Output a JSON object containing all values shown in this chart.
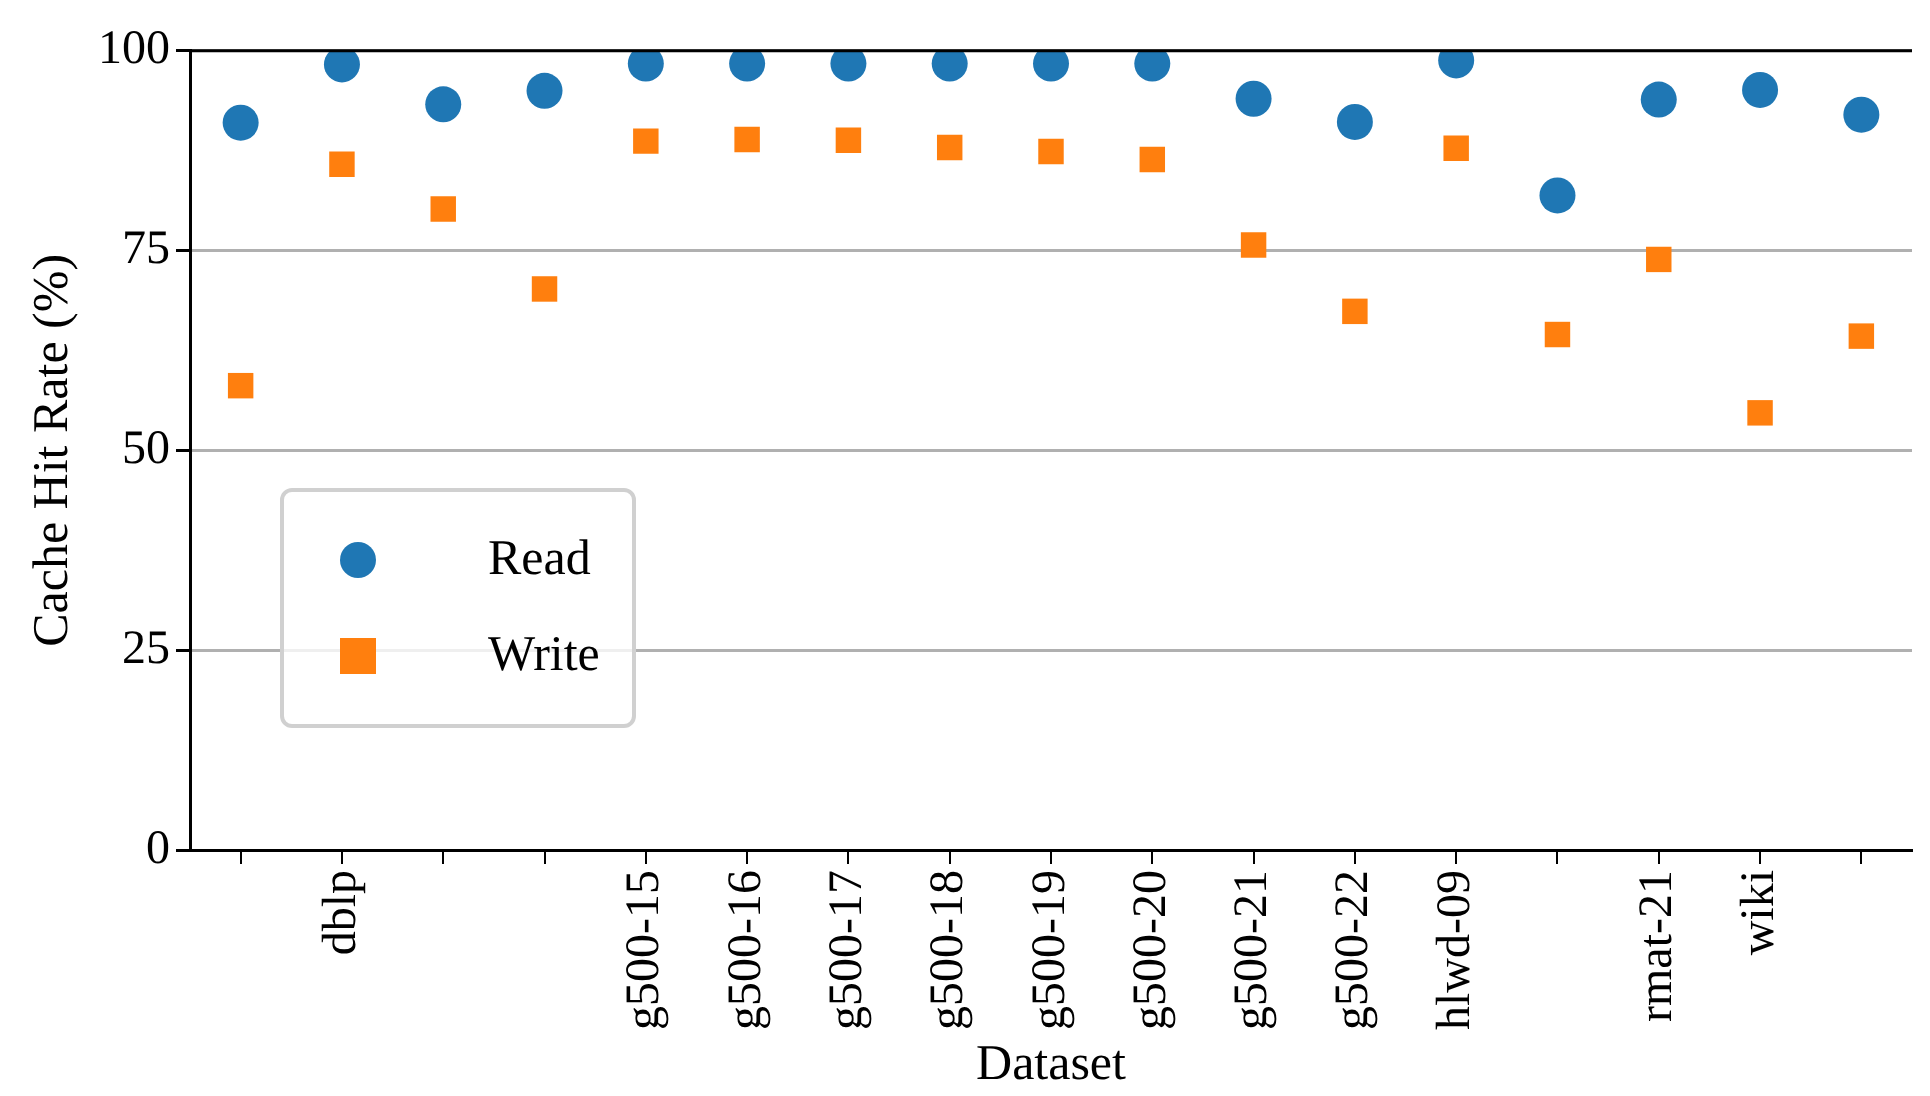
{
  "chart_data": {
    "type": "scatter",
    "xlabel": "Dataset",
    "ylabel": "Cache Hit Rate (%)",
    "categories": [
      null,
      "dblp",
      null,
      null,
      "g500-15",
      "g500-16",
      "g500-17",
      "g500-18",
      "g500-19",
      "g500-20",
      "g500-21",
      "g500-22",
      "hlwd-09",
      null,
      "rmat-21",
      "wiki",
      null
    ],
    "series": [
      {
        "name": "Read",
        "color": "#1f77b4",
        "marker": "circle",
        "values": [
          91.0,
          98.3,
          93.3,
          95.0,
          98.4,
          98.4,
          98.4,
          98.4,
          98.4,
          98.4,
          94.0,
          91.1,
          98.8,
          81.9,
          93.9,
          95.1,
          92.0
        ]
      },
      {
        "name": "Write",
        "color": "#ff7f0e",
        "marker": "square",
        "values": [
          58.1,
          85.8,
          80.2,
          70.2,
          88.7,
          88.9,
          88.8,
          87.9,
          87.4,
          86.4,
          75.7,
          67.4,
          87.8,
          64.5,
          73.9,
          54.7,
          64.3
        ]
      }
    ],
    "ylim": [
      0,
      100
    ],
    "yticks": [
      0,
      25,
      50,
      75,
      100
    ],
    "grid": "y",
    "legend": "bottom left"
  }
}
